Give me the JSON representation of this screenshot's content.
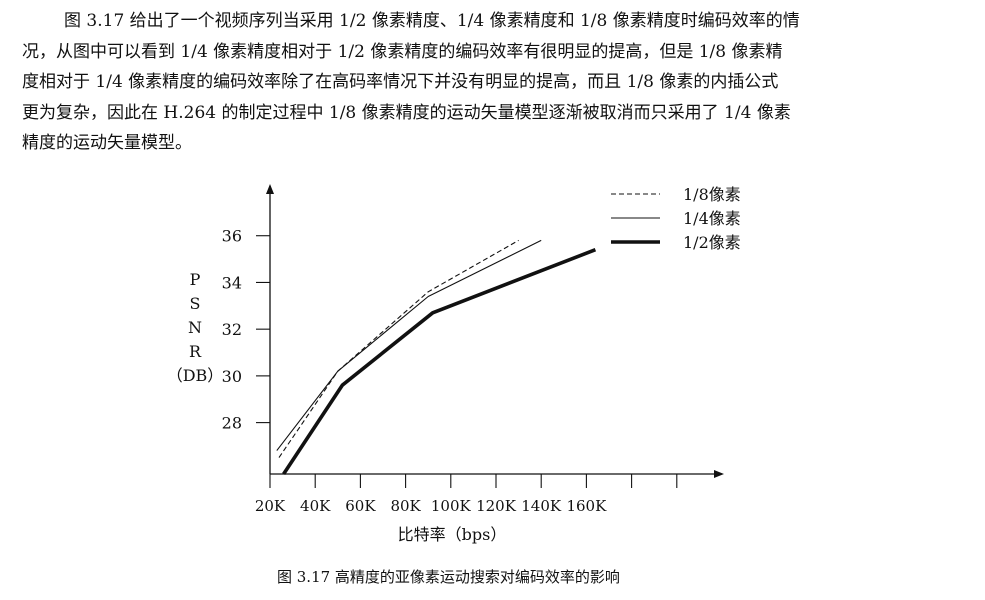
{
  "paragraph": {
    "lines": [
      "图 3.17 给出了一个视频序列当采用 1/2 像素精度、1/4 像素精度和 1/8 像素精度时编码效率的情",
      "况，从图中可以看到 1/4 像素精度相对于 1/2 像素精度的编码效率有很明显的提高，但是 1/8 像素精",
      "度相对于 1/4 像素精度的编码效率除了在高码率情况下并没有明显的提高，而且 1/8 像素的内插公式",
      "更为复杂，因此在 H.264 的制定过程中 1/8 像素精度的运动矢量模型逐渐被取消而只采用了 1/4 像素",
      "精度的运动矢量模型。"
    ]
  },
  "chart_data": {
    "type": "line",
    "xlabel": "比特率（bps）",
    "ylabel_chars": [
      "P",
      "S",
      "N",
      "R",
      "（DB）"
    ],
    "x_ticks": [
      "20K",
      "40K",
      "60K",
      "80K",
      "100K",
      "120K",
      "140K",
      "160K"
    ],
    "x_tick_values": [
      20,
      40,
      60,
      80,
      100,
      120,
      140,
      160
    ],
    "y_ticks": [
      36,
      34,
      32,
      30,
      28
    ],
    "xlim": [
      20,
      220
    ],
    "ylim": [
      25.8,
      38
    ],
    "legend_position": "top-right",
    "series": [
      {
        "name": "1/8像素",
        "style": "dashed",
        "x": [
          24,
          50,
          90,
          130
        ],
        "y": [
          26.5,
          30.2,
          33.6,
          35.8
        ]
      },
      {
        "name": "1/4像素",
        "style": "thin",
        "x": [
          23,
          50,
          90,
          140
        ],
        "y": [
          26.8,
          30.2,
          33.4,
          35.8
        ]
      },
      {
        "name": "1/2像素",
        "style": "thick",
        "x": [
          26,
          52,
          92,
          164
        ],
        "y": [
          25.8,
          29.6,
          32.7,
          35.4
        ]
      }
    ]
  },
  "caption": "图 3.17 高精度的亚像素运动搜索对编码效率的影响"
}
